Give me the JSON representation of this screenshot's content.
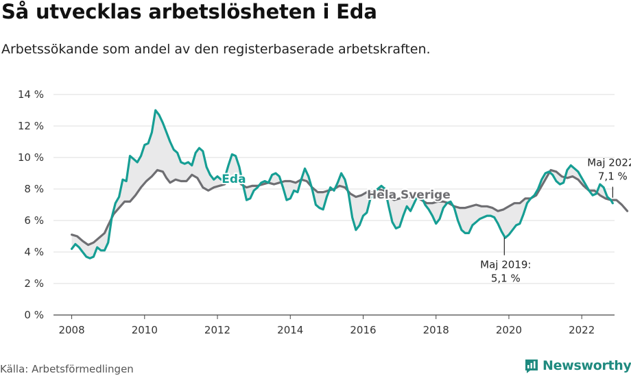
{
  "title": "Så utvecklas arbetslösheten i Eda",
  "subtitle": "Arbetssökande som andel av den registerbaserade arbetskraften.",
  "source": "Källa: Arbetsförmedlingen",
  "logo": {
    "text": "Newsworthy",
    "icon": "bar-chart-logo-icon",
    "color": "#1f8a7f"
  },
  "chart_data": {
    "type": "line",
    "xlim": [
      2007.5,
      2022.9
    ],
    "ylim": [
      0,
      14
    ],
    "x_ticks": [
      2008,
      2010,
      2012,
      2014,
      2016,
      2018,
      2020,
      2022
    ],
    "x_tick_labels": [
      "2008",
      "2010",
      "2012",
      "2014",
      "2016",
      "2018",
      "2020",
      "2022"
    ],
    "y_ticks": [
      0,
      2,
      4,
      6,
      8,
      10,
      12,
      14
    ],
    "y_tick_labels": [
      "0 %",
      "2 %",
      "4 %",
      "6 %",
      "8 %",
      "10 %",
      "12 %",
      "14 %"
    ],
    "grid": true,
    "series": [
      {
        "name": "Eda",
        "color": "#169e94",
        "label_at": [
          2012.45,
          8.4
        ],
        "points": [
          [
            2008.0,
            4.2
          ],
          [
            2008.1,
            4.5
          ],
          [
            2008.2,
            4.3
          ],
          [
            2008.3,
            4.0
          ],
          [
            2008.4,
            3.7
          ],
          [
            2008.5,
            3.6
          ],
          [
            2008.6,
            3.7
          ],
          [
            2008.7,
            4.3
          ],
          [
            2008.8,
            4.1
          ],
          [
            2008.9,
            4.1
          ],
          [
            2009.0,
            4.6
          ],
          [
            2009.1,
            6.2
          ],
          [
            2009.2,
            7.1
          ],
          [
            2009.3,
            7.5
          ],
          [
            2009.4,
            8.6
          ],
          [
            2009.5,
            8.5
          ],
          [
            2009.6,
            10.1
          ],
          [
            2009.7,
            9.9
          ],
          [
            2009.8,
            9.7
          ],
          [
            2009.9,
            10.1
          ],
          [
            2010.0,
            10.8
          ],
          [
            2010.1,
            10.9
          ],
          [
            2010.2,
            11.6
          ],
          [
            2010.3,
            13.0
          ],
          [
            2010.4,
            12.7
          ],
          [
            2010.5,
            12.2
          ],
          [
            2010.6,
            11.6
          ],
          [
            2010.7,
            11.0
          ],
          [
            2010.8,
            10.5
          ],
          [
            2010.9,
            10.3
          ],
          [
            2011.0,
            9.7
          ],
          [
            2011.1,
            9.6
          ],
          [
            2011.2,
            9.7
          ],
          [
            2011.3,
            9.5
          ],
          [
            2011.4,
            10.3
          ],
          [
            2011.5,
            10.6
          ],
          [
            2011.6,
            10.4
          ],
          [
            2011.7,
            9.4
          ],
          [
            2011.8,
            8.9
          ],
          [
            2011.9,
            8.6
          ],
          [
            2012.0,
            8.8
          ],
          [
            2012.1,
            8.6
          ],
          [
            2012.2,
            8.7
          ],
          [
            2012.3,
            9.5
          ],
          [
            2012.4,
            10.2
          ],
          [
            2012.5,
            10.1
          ],
          [
            2012.6,
            9.4
          ],
          [
            2012.7,
            8.3
          ],
          [
            2012.8,
            7.3
          ],
          [
            2012.9,
            7.4
          ],
          [
            2013.0,
            7.9
          ],
          [
            2013.1,
            8.1
          ],
          [
            2013.2,
            8.4
          ],
          [
            2013.3,
            8.5
          ],
          [
            2013.4,
            8.4
          ],
          [
            2013.5,
            8.9
          ],
          [
            2013.6,
            9.0
          ],
          [
            2013.7,
            8.8
          ],
          [
            2013.8,
            8.1
          ],
          [
            2013.9,
            7.3
          ],
          [
            2014.0,
            7.4
          ],
          [
            2014.1,
            7.9
          ],
          [
            2014.2,
            7.8
          ],
          [
            2014.3,
            8.6
          ],
          [
            2014.4,
            9.3
          ],
          [
            2014.5,
            8.8
          ],
          [
            2014.6,
            8.0
          ],
          [
            2014.7,
            7.0
          ],
          [
            2014.8,
            6.8
          ],
          [
            2014.9,
            6.7
          ],
          [
            2015.0,
            7.5
          ],
          [
            2015.1,
            8.1
          ],
          [
            2015.2,
            7.9
          ],
          [
            2015.3,
            8.4
          ],
          [
            2015.4,
            9.0
          ],
          [
            2015.5,
            8.6
          ],
          [
            2015.6,
            7.7
          ],
          [
            2015.7,
            6.2
          ],
          [
            2015.8,
            5.4
          ],
          [
            2015.9,
            5.7
          ],
          [
            2016.0,
            6.3
          ],
          [
            2016.1,
            6.5
          ],
          [
            2016.2,
            7.4
          ],
          [
            2016.3,
            7.8
          ],
          [
            2016.4,
            8.0
          ],
          [
            2016.5,
            8.2
          ],
          [
            2016.6,
            8.0
          ],
          [
            2016.7,
            6.9
          ],
          [
            2016.8,
            5.9
          ],
          [
            2016.9,
            5.5
          ],
          [
            2017.0,
            5.6
          ],
          [
            2017.1,
            6.3
          ],
          [
            2017.2,
            6.9
          ],
          [
            2017.3,
            6.6
          ],
          [
            2017.4,
            7.1
          ],
          [
            2017.5,
            7.6
          ],
          [
            2017.6,
            7.5
          ],
          [
            2017.7,
            7.0
          ],
          [
            2017.8,
            6.7
          ],
          [
            2017.9,
            6.3
          ],
          [
            2018.0,
            5.8
          ],
          [
            2018.1,
            6.1
          ],
          [
            2018.2,
            6.8
          ],
          [
            2018.3,
            7.1
          ],
          [
            2018.4,
            7.2
          ],
          [
            2018.5,
            6.8
          ],
          [
            2018.6,
            6.0
          ],
          [
            2018.7,
            5.4
          ],
          [
            2018.8,
            5.2
          ],
          [
            2018.9,
            5.2
          ],
          [
            2019.0,
            5.7
          ],
          [
            2019.1,
            5.9
          ],
          [
            2019.2,
            6.1
          ],
          [
            2019.3,
            6.2
          ],
          [
            2019.4,
            6.3
          ],
          [
            2019.5,
            6.3
          ],
          [
            2019.6,
            6.2
          ],
          [
            2019.7,
            5.8
          ],
          [
            2019.8,
            5.3
          ],
          [
            2019.9,
            4.9
          ],
          [
            2020.0,
            5.1
          ],
          [
            2020.1,
            5.4
          ],
          [
            2020.2,
            5.7
          ],
          [
            2020.3,
            5.8
          ],
          [
            2020.4,
            6.4
          ],
          [
            2020.5,
            7.1
          ],
          [
            2020.6,
            7.4
          ],
          [
            2020.7,
            7.6
          ],
          [
            2020.8,
            8.0
          ],
          [
            2020.9,
            8.6
          ],
          [
            2021.0,
            9.0
          ],
          [
            2021.1,
            9.1
          ],
          [
            2021.2,
            8.9
          ],
          [
            2021.3,
            8.5
          ],
          [
            2021.4,
            8.3
          ],
          [
            2021.5,
            8.4
          ],
          [
            2021.6,
            9.2
          ],
          [
            2021.7,
            9.5
          ],
          [
            2021.8,
            9.3
          ],
          [
            2021.9,
            9.1
          ],
          [
            2022.0,
            8.7
          ],
          [
            2022.1,
            8.3
          ],
          [
            2022.2,
            7.9
          ],
          [
            2022.3,
            7.6
          ],
          [
            2022.4,
            7.7
          ],
          [
            2022.5,
            8.3
          ],
          [
            2022.6,
            8.1
          ],
          [
            2022.7,
            7.5
          ],
          [
            2022.8,
            7.3
          ],
          [
            2022.85,
            7.1
          ]
        ]
      },
      {
        "name": "Hela Sverige",
        "color": "#6e6e72",
        "label_at": [
          2017.25,
          7.4
        ],
        "points": [
          [
            2008.0,
            5.1
          ],
          [
            2008.15,
            5.0
          ],
          [
            2008.3,
            4.7
          ],
          [
            2008.45,
            4.45
          ],
          [
            2008.6,
            4.6
          ],
          [
            2008.75,
            4.9
          ],
          [
            2008.9,
            5.2
          ],
          [
            2009.0,
            5.7
          ],
          [
            2009.15,
            6.4
          ],
          [
            2009.3,
            6.8
          ],
          [
            2009.45,
            7.2
          ],
          [
            2009.6,
            7.2
          ],
          [
            2009.75,
            7.6
          ],
          [
            2009.9,
            8.1
          ],
          [
            2010.05,
            8.5
          ],
          [
            2010.2,
            8.8
          ],
          [
            2010.35,
            9.2
          ],
          [
            2010.5,
            9.1
          ],
          [
            2010.6,
            8.7
          ],
          [
            2010.7,
            8.4
          ],
          [
            2010.85,
            8.6
          ],
          [
            2011.0,
            8.5
          ],
          [
            2011.15,
            8.5
          ],
          [
            2011.3,
            8.9
          ],
          [
            2011.45,
            8.7
          ],
          [
            2011.6,
            8.1
          ],
          [
            2011.75,
            7.9
          ],
          [
            2011.9,
            8.1
          ],
          [
            2012.05,
            8.2
          ],
          [
            2012.2,
            8.3
          ],
          [
            2012.35,
            8.7
          ],
          [
            2012.5,
            8.7
          ],
          [
            2012.65,
            8.3
          ],
          [
            2012.8,
            8.1
          ],
          [
            2012.95,
            8.2
          ],
          [
            2013.1,
            8.2
          ],
          [
            2013.25,
            8.3
          ],
          [
            2013.4,
            8.4
          ],
          [
            2013.55,
            8.3
          ],
          [
            2013.7,
            8.4
          ],
          [
            2013.85,
            8.5
          ],
          [
            2014.0,
            8.5
          ],
          [
            2014.15,
            8.4
          ],
          [
            2014.3,
            8.6
          ],
          [
            2014.45,
            8.5
          ],
          [
            2014.6,
            8.1
          ],
          [
            2014.75,
            7.8
          ],
          [
            2014.9,
            7.8
          ],
          [
            2015.05,
            7.9
          ],
          [
            2015.2,
            8.0
          ],
          [
            2015.35,
            8.2
          ],
          [
            2015.5,
            8.1
          ],
          [
            2015.65,
            7.7
          ],
          [
            2015.8,
            7.5
          ],
          [
            2015.95,
            7.6
          ],
          [
            2016.1,
            7.8
          ],
          [
            2016.25,
            7.8
          ],
          [
            2016.4,
            8.0
          ],
          [
            2016.55,
            7.9
          ],
          [
            2016.7,
            7.5
          ],
          [
            2016.85,
            7.3
          ],
          [
            2017.0,
            7.4
          ],
          [
            2017.15,
            7.5
          ],
          [
            2017.3,
            7.5
          ],
          [
            2017.45,
            7.5
          ],
          [
            2017.6,
            7.3
          ],
          [
            2017.75,
            7.1
          ],
          [
            2017.9,
            7.1
          ],
          [
            2018.05,
            7.2
          ],
          [
            2018.2,
            7.2
          ],
          [
            2018.35,
            7.1
          ],
          [
            2018.5,
            6.9
          ],
          [
            2018.65,
            6.8
          ],
          [
            2018.8,
            6.8
          ],
          [
            2018.95,
            6.9
          ],
          [
            2019.1,
            7.0
          ],
          [
            2019.25,
            6.9
          ],
          [
            2019.4,
            6.9
          ],
          [
            2019.55,
            6.8
          ],
          [
            2019.7,
            6.6
          ],
          [
            2019.85,
            6.7
          ],
          [
            2020.0,
            6.9
          ],
          [
            2020.15,
            7.1
          ],
          [
            2020.3,
            7.1
          ],
          [
            2020.45,
            7.4
          ],
          [
            2020.6,
            7.4
          ],
          [
            2020.75,
            7.6
          ],
          [
            2020.9,
            8.2
          ],
          [
            2021.05,
            8.8
          ],
          [
            2021.15,
            9.2
          ],
          [
            2021.3,
            9.1
          ],
          [
            2021.45,
            8.8
          ],
          [
            2021.6,
            8.7
          ],
          [
            2021.75,
            8.8
          ],
          [
            2021.9,
            8.6
          ],
          [
            2022.05,
            8.2
          ],
          [
            2022.2,
            7.9
          ],
          [
            2022.35,
            7.9
          ],
          [
            2022.5,
            7.6
          ],
          [
            2022.65,
            7.4
          ],
          [
            2022.8,
            7.3
          ],
          [
            2022.95,
            7.3
          ],
          [
            2023.1,
            7.0
          ],
          [
            2023.25,
            6.6
          ]
        ]
      }
    ],
    "annotations": [
      {
        "id": "min",
        "lines": [
          "Maj 2019:",
          "5,1 %"
        ],
        "x": 2019.95,
        "y": 5.1,
        "side": "below"
      },
      {
        "id": "last",
        "lines": [
          "Maj 2022:",
          "7,1 %"
        ],
        "x": 2022.85,
        "y": 7.1,
        "side": "above"
      }
    ]
  }
}
